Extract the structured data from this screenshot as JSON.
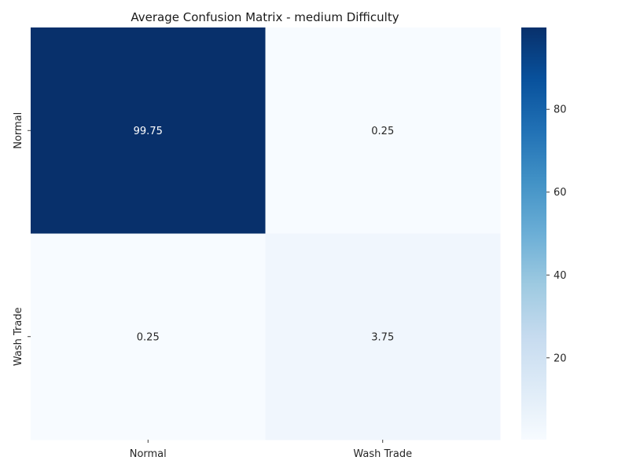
{
  "chart_data": {
    "type": "heatmap",
    "title": "Average Confusion Matrix - medium Difficulty",
    "xlabel": "",
    "ylabel": "",
    "x_categories": [
      "Normal",
      "Wash Trade"
    ],
    "y_categories": [
      "Normal",
      "Wash Trade"
    ],
    "values": [
      [
        99.75,
        0.25
      ],
      [
        0.25,
        3.75
      ]
    ],
    "value_labels": [
      [
        "99.75",
        "0.25"
      ],
      [
        "0.25",
        "3.75"
      ]
    ],
    "colormap": "Blues",
    "vmin": 0.25,
    "vmax": 99.75,
    "colorbar": {
      "ticks": [
        20,
        40,
        60,
        80
      ],
      "tick_labels": [
        "20",
        "40",
        "60",
        "80"
      ]
    },
    "grid": false
  }
}
